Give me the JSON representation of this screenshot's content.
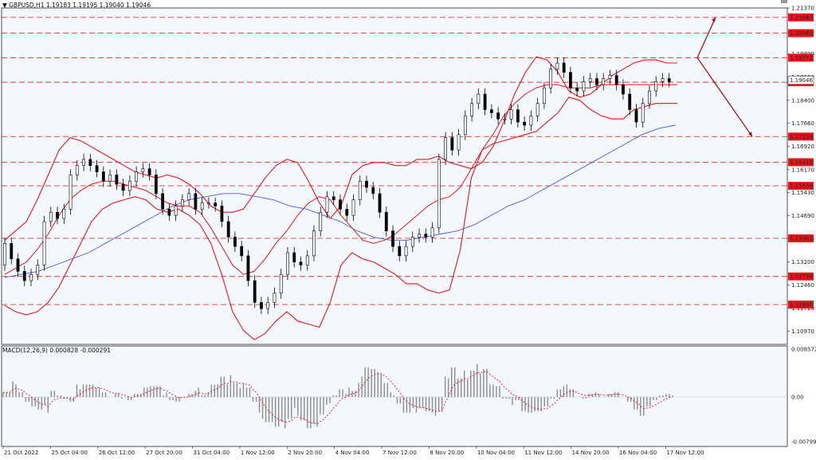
{
  "header": {
    "symbol_label": "GBPUSD,H1",
    "ohlc": "1.19183 1.19195 1.19040 1.19046",
    "macd_label": "MACD(12,26,9) 0.000828 -0.000291"
  },
  "colors": {
    "background": "#ffffff",
    "panel_bg": "#f3f8fd",
    "candles": "#000000",
    "bollinger": "#e8141b",
    "moving_average": "#4d5bd6",
    "level_line": "#d83a3a",
    "level_tag": "#e8141b",
    "forecast_arrow": "#a8101a",
    "macd_hist": "#8c8c8c",
    "macd_signal": "#e8141b"
  },
  "chart_data": [
    {
      "type": "candlestick",
      "title": "GBPUSD,H1",
      "x_tick_labels": [
        "21 Oct 2022",
        "25 Oct 04:00",
        "26 Oct 12:00",
        "27 Oct 20:00",
        "31 Oct 04:00",
        "1 Nov 12:00",
        "2 Nov 20:00",
        "4 Nov 04:00",
        "7 Nov 12:00",
        "8 Nov 20:00",
        "10 Nov 04:00",
        "11 Nov 12:00",
        "14 Nov 20:00",
        "16 Nov 04:00",
        "17 Nov 12:00"
      ],
      "y_tick_labels": [
        "1.21370",
        "1.20600",
        "1.19890",
        "1.19150",
        "1.18400",
        "1.17660",
        "1.16920",
        "1.16170",
        "1.15430",
        "1.14690",
        "1.13950",
        "1.13200",
        "1.12460",
        "1.11720",
        "1.10970"
      ],
      "ylim": [
        1.1055,
        1.2137
      ],
      "horizontal_levels": [
        1.21067,
        1.2056,
        1.19771,
        1.18982,
        1.17234,
        1.1641,
        1.1565,
        1.13961,
        1.12736,
        1.1183
      ],
      "current_price": 1.19046,
      "price_path": [
        1.131,
        1.138,
        1.133,
        1.129,
        1.126,
        1.128,
        1.131,
        1.145,
        1.148,
        1.146,
        1.149,
        1.16,
        1.163,
        1.165,
        1.163,
        1.161,
        1.158,
        1.16,
        1.157,
        1.155,
        1.158,
        1.161,
        1.162,
        1.16,
        1.154,
        1.149,
        1.147,
        1.15,
        1.152,
        1.154,
        1.149,
        1.151,
        1.151,
        1.15,
        1.145,
        1.14,
        1.137,
        1.134,
        1.126,
        1.119,
        1.117,
        1.119,
        1.122,
        1.128,
        1.135,
        1.132,
        1.131,
        1.134,
        1.142,
        1.148,
        1.153,
        1.152,
        1.149,
        1.147,
        1.152,
        1.158,
        1.156,
        1.154,
        1.148,
        1.142,
        1.137,
        1.134,
        1.137,
        1.14,
        1.141,
        1.14,
        1.143,
        1.165,
        1.172,
        1.168,
        1.173,
        1.179,
        1.183,
        1.186,
        1.181,
        1.18,
        1.178,
        1.178,
        1.181,
        1.177,
        1.176,
        1.179,
        1.183,
        1.188,
        1.194,
        1.196,
        1.193,
        1.188,
        1.187,
        1.19,
        1.191,
        1.189,
        1.191,
        1.192,
        1.189,
        1.186,
        1.181,
        1.177,
        1.183,
        1.187,
        1.19,
        1.191,
        1.19
      ],
      "bollinger_upper": [
        1.139,
        1.142,
        1.145,
        1.152,
        1.16,
        1.168,
        1.172,
        1.171,
        1.169,
        1.167,
        1.165,
        1.163,
        1.161,
        1.16,
        1.159,
        1.16,
        1.159,
        1.157,
        1.154,
        1.15,
        1.148,
        1.148,
        1.149,
        1.154,
        1.159,
        1.163,
        1.165,
        1.164,
        1.158,
        1.151,
        1.146,
        1.15,
        1.16,
        1.163,
        1.164,
        1.164,
        1.163,
        1.163,
        1.165,
        1.165,
        1.166,
        1.164,
        1.163,
        1.162,
        1.164,
        1.169,
        1.177,
        1.186,
        1.193,
        1.198,
        1.197,
        1.193,
        1.187,
        1.185,
        1.186,
        1.189,
        1.192,
        1.194,
        1.196,
        1.197,
        1.197,
        1.196,
        1.196
      ],
      "bollinger_lower": [
        1.118,
        1.116,
        1.115,
        1.116,
        1.119,
        1.124,
        1.131,
        1.138,
        1.145,
        1.149,
        1.151,
        1.152,
        1.153,
        1.152,
        1.149,
        1.148,
        1.149,
        1.147,
        1.144,
        1.138,
        1.128,
        1.116,
        1.11,
        1.107,
        1.109,
        1.113,
        1.116,
        1.113,
        1.112,
        1.111,
        1.119,
        1.131,
        1.135,
        1.133,
        1.132,
        1.13,
        1.128,
        1.125,
        1.125,
        1.123,
        1.122,
        1.123,
        1.136,
        1.159,
        1.168,
        1.17,
        1.171,
        1.172,
        1.173,
        1.174,
        1.177,
        1.18,
        1.185,
        1.184,
        1.181,
        1.179,
        1.178,
        1.178,
        1.181,
        1.182,
        1.183,
        1.183,
        1.183
      ],
      "bollinger_mid": [
        1.128,
        1.13,
        1.132,
        1.136,
        1.141,
        1.147,
        1.152,
        1.155,
        1.157,
        1.158,
        1.158,
        1.157,
        1.156,
        1.155,
        1.153,
        1.151,
        1.15,
        1.15,
        1.148,
        1.143,
        1.137,
        1.131,
        1.128,
        1.129,
        1.133,
        1.138,
        1.142,
        1.147,
        1.151,
        1.153,
        1.152,
        1.147,
        1.143,
        1.139,
        1.138,
        1.139,
        1.141,
        1.144,
        1.147,
        1.15,
        1.152,
        1.153,
        1.156,
        1.162,
        1.168,
        1.173,
        1.179,
        1.183,
        1.186,
        1.188,
        1.189,
        1.189,
        1.188,
        1.188,
        1.188,
        1.189,
        1.189,
        1.189,
        1.189,
        1.189,
        1.189,
        1.189,
        1.189
      ],
      "moving_average": [
        1.127,
        1.128,
        1.129,
        1.131,
        1.133,
        1.135,
        1.138,
        1.141,
        1.144,
        1.147,
        1.15,
        1.152,
        1.153,
        1.154,
        1.154,
        1.153,
        1.152,
        1.15,
        1.149,
        1.147,
        1.145,
        1.142,
        1.14,
        1.139,
        1.139,
        1.14,
        1.141,
        1.142,
        1.144,
        1.147,
        1.15,
        1.152,
        1.155,
        1.158,
        1.161,
        1.164,
        1.167,
        1.17,
        1.173,
        1.175,
        1.176
      ],
      "forecast_path": [
        1.19771,
        1.21067,
        1.19771,
        1.17234
      ]
    },
    {
      "type": "bar",
      "title": "MACD(12,26,9)",
      "values_label": "0.000828 -0.000291",
      "y_tick_labels": [
        "0.008572",
        "0.00",
        "-0.007991"
      ],
      "ylim": [
        -0.007991,
        0.008572
      ]
    }
  ]
}
